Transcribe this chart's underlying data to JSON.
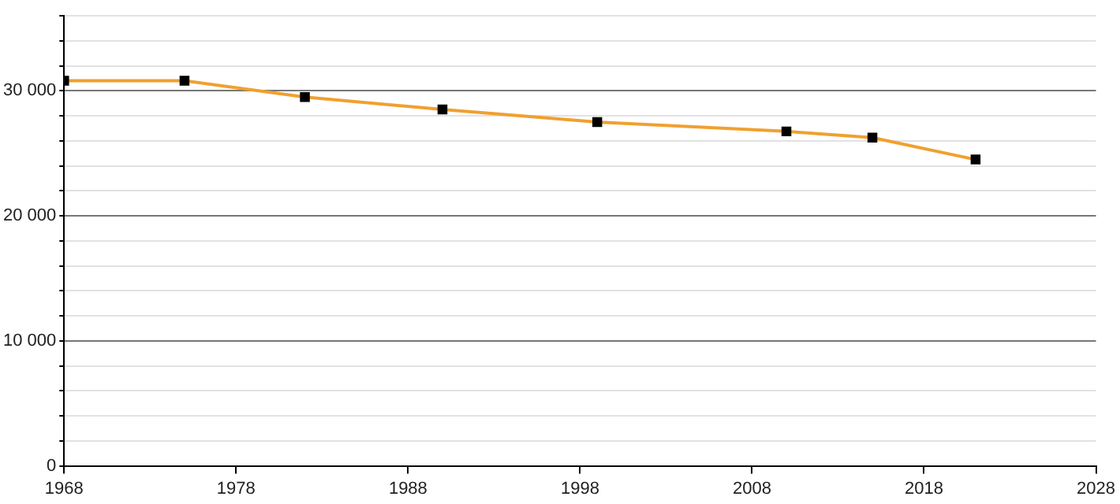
{
  "chart_data": {
    "type": "line",
    "x": [
      1968,
      1975,
      1982,
      1990,
      1999,
      2010,
      2015,
      2021
    ],
    "series": [
      {
        "color": "#f0a030",
        "values": [
          30800,
          30800,
          29500,
          28500,
          27500,
          26750,
          26250,
          24500
        ]
      }
    ],
    "xlim": [
      1968,
      2028
    ],
    "xticks": [
      1968,
      1978,
      1988,
      1998,
      2008,
      2018,
      2028
    ],
    "ylim": [
      0,
      36000
    ],
    "yticks": [
      {
        "value": 0,
        "label": "0"
      },
      {
        "value": 2000,
        "label": null
      },
      {
        "value": 4000,
        "label": null
      },
      {
        "value": 6000,
        "label": null
      },
      {
        "value": 8000,
        "label": null
      },
      {
        "value": 10000,
        "label": "10 000"
      },
      {
        "value": 12000,
        "label": null
      },
      {
        "value": 14000,
        "label": null
      },
      {
        "value": 16000,
        "label": null
      },
      {
        "value": 18000,
        "label": null
      },
      {
        "value": 20000,
        "label": "20 000"
      },
      {
        "value": 22000,
        "label": null
      },
      {
        "value": 24000,
        "label": null
      },
      {
        "value": 26000,
        "label": null
      },
      {
        "value": 28000,
        "label": null
      },
      {
        "value": 30000,
        "label": "30 000"
      },
      {
        "value": 32000,
        "label": null
      },
      {
        "value": 34000,
        "label": null
      },
      {
        "value": 36000,
        "label": null
      }
    ],
    "grid": "y",
    "legend": false,
    "marker": "square",
    "line_style": "solid"
  }
}
